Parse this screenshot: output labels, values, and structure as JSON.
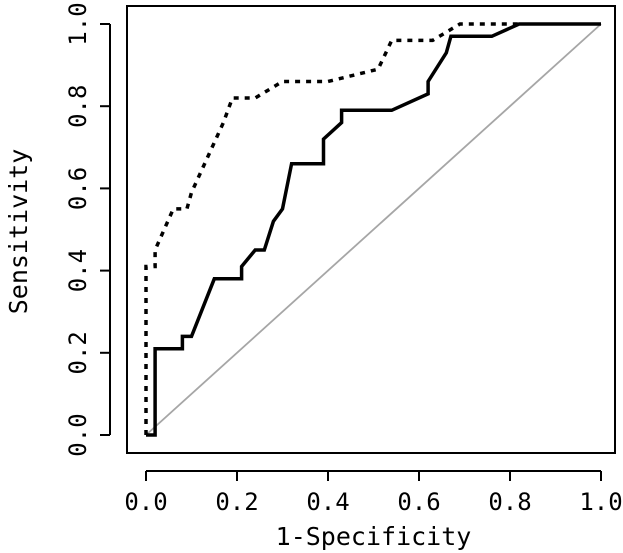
{
  "chart_data": {
    "type": "line",
    "title": "",
    "xlabel": "1-Specificity",
    "ylabel": "Sensitivity",
    "xlim": [
      0,
      1
    ],
    "ylim": [
      0,
      1
    ],
    "x_ticks": [
      "0.0",
      "0.2",
      "0.4",
      "0.6",
      "0.8",
      "1.0"
    ],
    "y_ticks": [
      "0.0",
      "0.2",
      "0.4",
      "0.6",
      "0.8",
      "1.0"
    ],
    "grid": false,
    "legend": "none",
    "colors": {
      "curves": "#000000",
      "diagonal": "#a6a6a6",
      "frame": "#000000"
    },
    "series": [
      {
        "style": "solid",
        "x": [
          0.0,
          0.02,
          0.02,
          0.08,
          0.08,
          0.1,
          0.15,
          0.21,
          0.21,
          0.24,
          0.26,
          0.28,
          0.3,
          0.32,
          0.39,
          0.39,
          0.43,
          0.43,
          0.54,
          0.62,
          0.62,
          0.66,
          0.67,
          0.76,
          0.82,
          1.0
        ],
        "y": [
          0.0,
          0.0,
          0.21,
          0.21,
          0.24,
          0.24,
          0.38,
          0.38,
          0.41,
          0.45,
          0.45,
          0.52,
          0.55,
          0.66,
          0.66,
          0.72,
          0.76,
          0.79,
          0.79,
          0.83,
          0.86,
          0.93,
          0.97,
          0.97,
          1.0,
          1.0
        ]
      },
      {
        "style": "dotted",
        "x": [
          0.0,
          0.0,
          0.02,
          0.02,
          0.06,
          0.09,
          0.1,
          0.17,
          0.19,
          0.24,
          0.3,
          0.4,
          0.51,
          0.54,
          0.63,
          0.69,
          0.82
        ],
        "y": [
          0.0,
          0.41,
          0.41,
          0.45,
          0.55,
          0.55,
          0.59,
          0.76,
          0.82,
          0.82,
          0.86,
          0.86,
          0.89,
          0.96,
          0.96,
          1.0,
          1.0
        ]
      },
      {
        "style": "diagonal",
        "x": [
          0.0,
          1.0
        ],
        "y": [
          0.0,
          1.0
        ]
      }
    ]
  }
}
